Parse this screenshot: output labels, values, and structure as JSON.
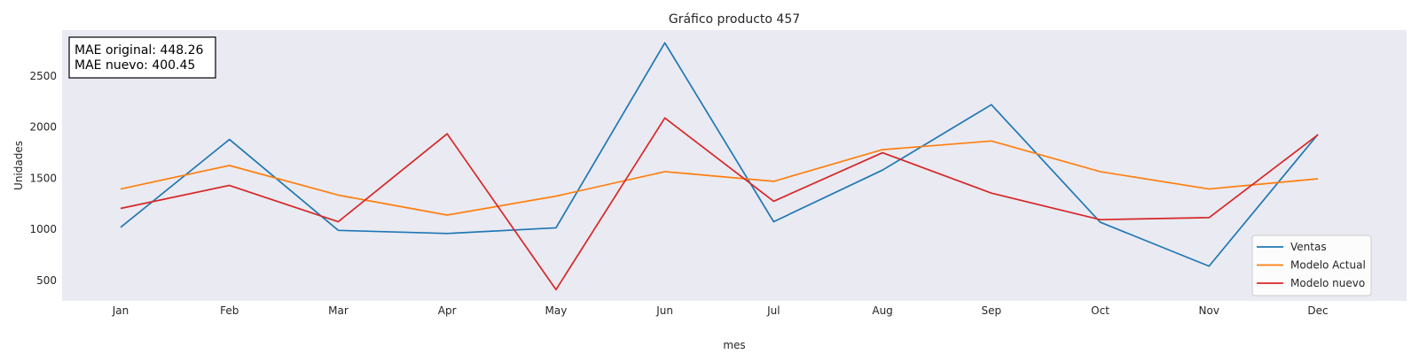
{
  "chart_data": {
    "type": "line",
    "title": "Gráfico producto 457",
    "xlabel": "mes",
    "ylabel": "Unidades",
    "categories": [
      "Jan",
      "Feb",
      "Mar",
      "Apr",
      "May",
      "Jun",
      "Jul",
      "Aug",
      "Sep",
      "Oct",
      "Nov",
      "Dec"
    ],
    "yticks": [
      500,
      1000,
      1500,
      2000,
      2500
    ],
    "ylim": [
      300,
      2950
    ],
    "grid": false,
    "background": "#eaeaf2",
    "legend_position": "bottom-right",
    "annotation": [
      "MAE original: 448.26",
      "MAE nuevo: 400.45"
    ],
    "series": [
      {
        "name": "Ventas",
        "color": "#1f77b4",
        "values": [
          1020,
          1880,
          990,
          960,
          1015,
          2825,
          1075,
          1580,
          2220,
          1070,
          640,
          1930
        ]
      },
      {
        "name": "Modelo Actual",
        "color": "#ff7f0e",
        "values": [
          1395,
          1625,
          1335,
          1140,
          1325,
          1565,
          1470,
          1780,
          1865,
          1565,
          1395,
          1495
        ]
      },
      {
        "name": "Modelo nuevo",
        "color": "#d62728",
        "values": [
          1205,
          1430,
          1075,
          1935,
          410,
          2090,
          1275,
          1750,
          1355,
          1095,
          1115,
          1925
        ]
      }
    ]
  }
}
